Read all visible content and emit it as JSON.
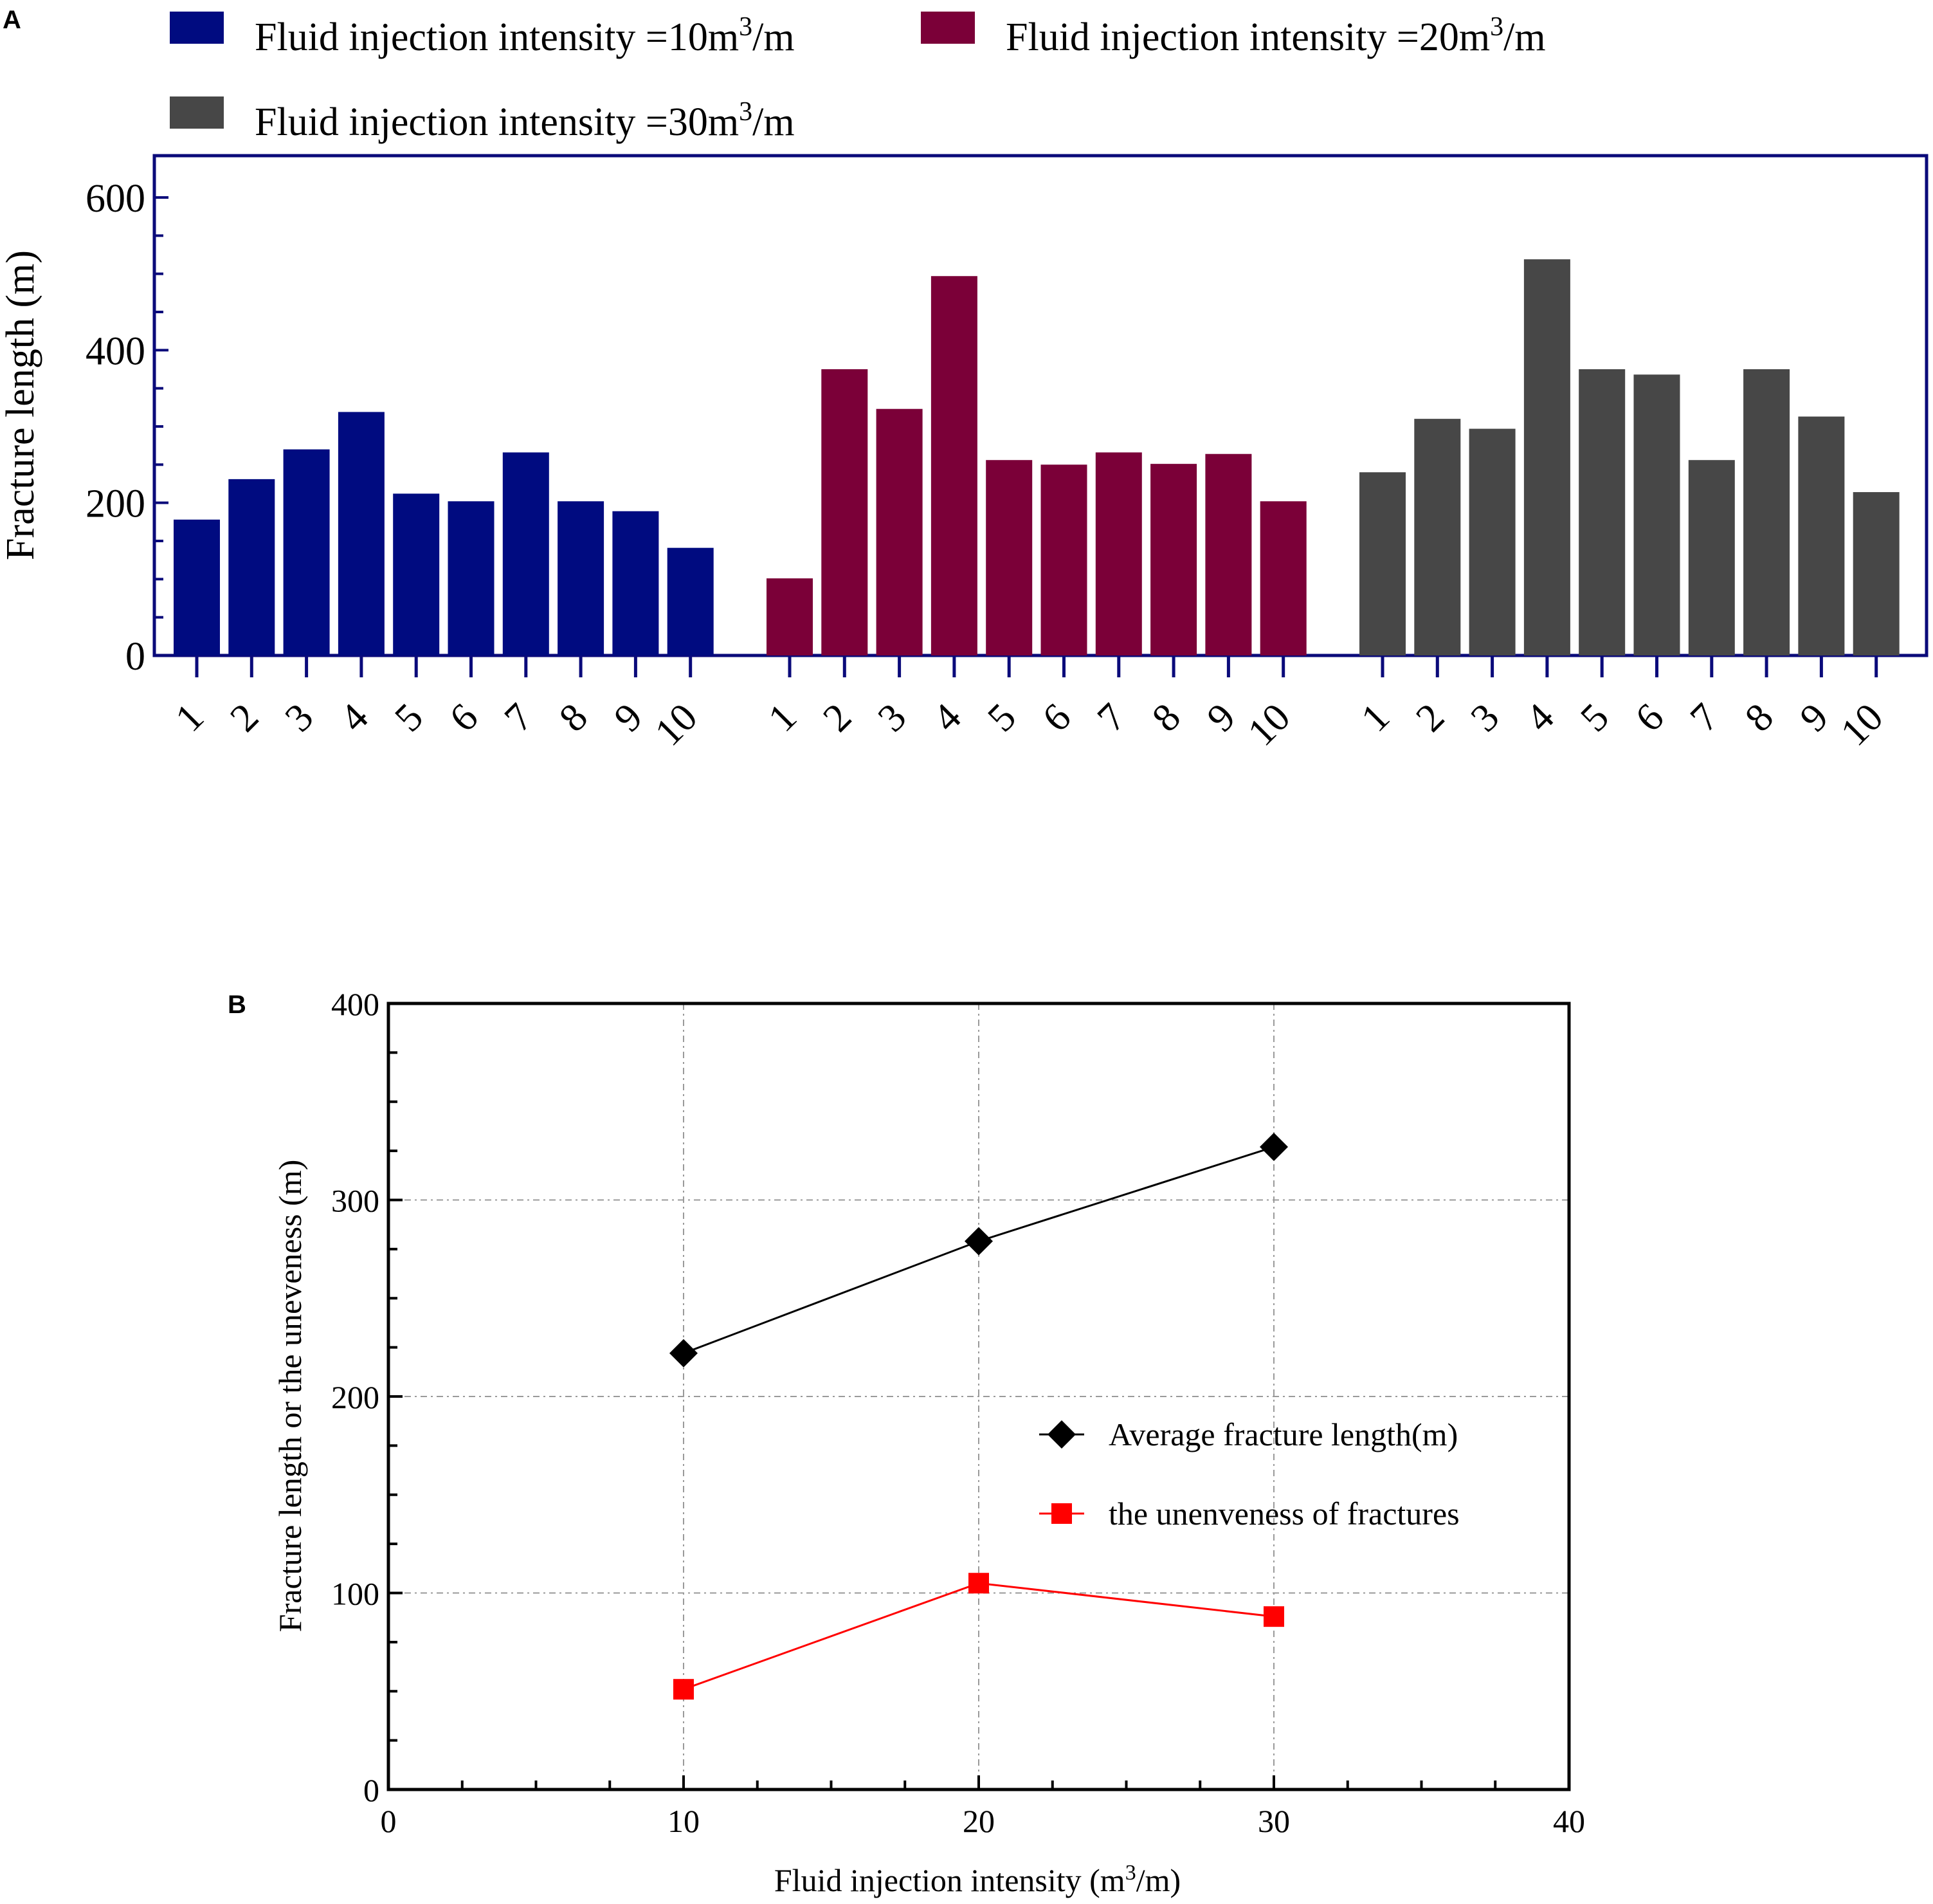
{
  "chart_data": [
    {
      "panel": "A",
      "type": "bar",
      "title": "",
      "xlabel": "",
      "ylabel": "Fracture length (m)",
      "ylim": [
        0,
        650
      ],
      "yticks": [
        0,
        200,
        400,
        600
      ],
      "categories": [
        "1",
        "2",
        "3",
        "4",
        "5",
        "6",
        "7",
        "8",
        "9",
        "10"
      ],
      "legend_position": "top",
      "series": [
        {
          "name_prefix": "Fluid injection intensity =10m",
          "name_sup": "3",
          "name_suffix": "/m",
          "color": "#000b80",
          "values": [
            178,
            231,
            270,
            319,
            212,
            202,
            266,
            202,
            189,
            141
          ]
        },
        {
          "name_prefix": "Fluid injection intensity =20m",
          "name_sup": "3",
          "name_suffix": "/m",
          "color": "#7b0038",
          "values": [
            101,
            375,
            323,
            497,
            256,
            250,
            266,
            251,
            264,
            202
          ]
        },
        {
          "name_prefix": "Fluid injection intensity =30m",
          "name_sup": "3",
          "name_suffix": "/m",
          "color": "#474747",
          "values": [
            240,
            310,
            297,
            519,
            375,
            368,
            256,
            375,
            313,
            214
          ]
        }
      ]
    },
    {
      "panel": "B",
      "type": "line",
      "title": "",
      "xlabel_prefix": "Fluid injection intensity (m",
      "xlabel_sup": "3",
      "xlabel_suffix": "/m)",
      "ylabel": "Fracture length or the uneveness (m)",
      "xlim": [
        0,
        40
      ],
      "ylim": [
        0,
        400
      ],
      "xticks": [
        0,
        10,
        20,
        30,
        40
      ],
      "yticks": [
        0,
        100,
        200,
        300,
        400
      ],
      "grid": true,
      "legend_position": "middle-right",
      "series": [
        {
          "name": "Average fracture length(m)",
          "marker": "diamond",
          "color": "#000000",
          "x": [
            10,
            20,
            30
          ],
          "y": [
            222,
            279,
            327
          ]
        },
        {
          "name": "the unenveness of fractures",
          "marker": "square",
          "color": "#ff0000",
          "x": [
            10,
            20,
            30
          ],
          "y": [
            51,
            105,
            88
          ]
        }
      ]
    }
  ]
}
